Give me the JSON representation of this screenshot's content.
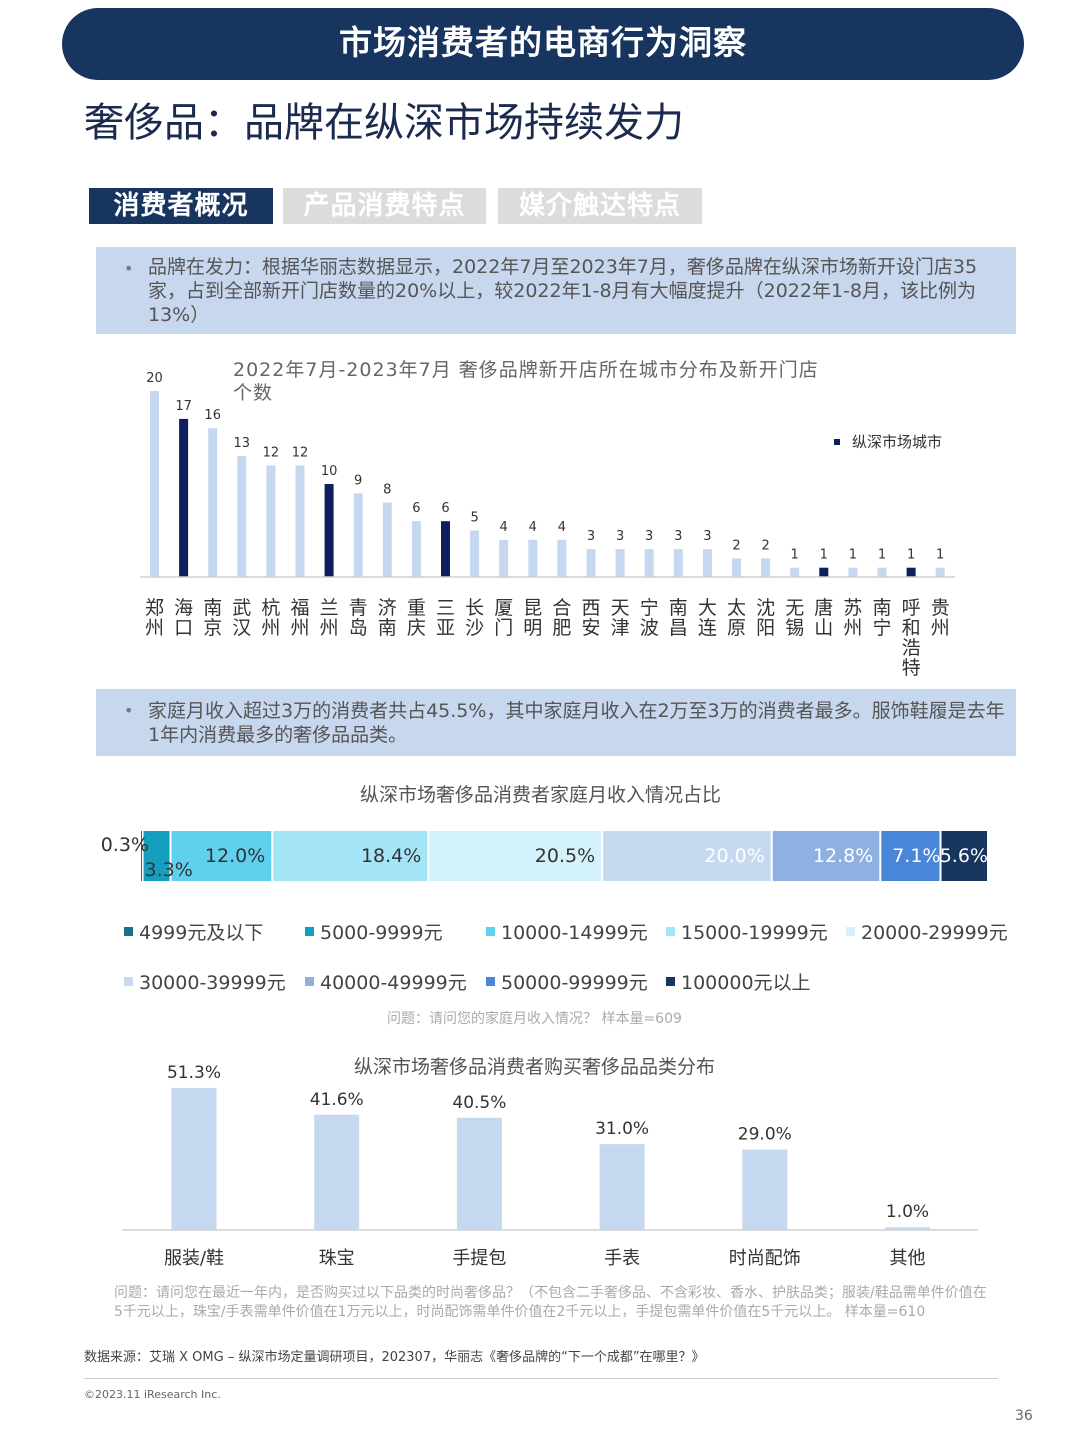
{
  "header": {
    "banner": "市场消费者的电商行为洞察",
    "title": "奢侈品：品牌在纵深市场持续发力"
  },
  "tabs": [
    {
      "label": "消费者概况",
      "active": true
    },
    {
      "label": "产品消费特点",
      "active": false
    },
    {
      "label": "媒介触达特点",
      "active": false
    }
  ],
  "notes": {
    "note1": {
      "bullet": "•",
      "text": "品牌在发力：根据华丽志数据显示，2022年7月至2023年7月，奢侈品牌在纵深市场新开设门店35家，占到全部新开门店数量的20%以上，较2022年1-8月有大幅度提升（2022年1-8月，该比例为13%）"
    },
    "note2": {
      "bullet": "•",
      "text": "家庭月收入超过3万的消费者共占45.5%，其中家庭月收入在2万至3万的消费者最多。服饰鞋履是去年1年内消费最多的奢侈品品类。"
    }
  },
  "colors": {
    "banner": "#17355f",
    "light_bar": "#c5d8f0",
    "dark_bar": "#0d1f5c"
  },
  "chart_data": [
    {
      "type": "bar",
      "title": "2022年7月-2023年7月 奢侈品牌新开店所在城市分布及新开门店个数",
      "legend": {
        "label": "纵深市场城市",
        "position": "top-right"
      },
      "categories": [
        "郑州",
        "海口",
        "南京",
        "武汉",
        "杭州",
        "福州",
        "兰州",
        "青岛",
        "济南",
        "重庆",
        "三亚",
        "长沙",
        "厦门",
        "昆明",
        "合肥",
        "西安",
        "天津",
        "宁波",
        "南昌",
        "大连",
        "太原",
        "沈阳",
        "无锡",
        "唐山",
        "苏州",
        "南宁",
        "呼和浩特",
        "贵州"
      ],
      "values": [
        20,
        17,
        16,
        13,
        12,
        12,
        10,
        9,
        8,
        6,
        6,
        5,
        4,
        4,
        4,
        3,
        3,
        3,
        3,
        3,
        2,
        2,
        1,
        1,
        1,
        1,
        1,
        1
      ],
      "highlight": [
        false,
        true,
        false,
        false,
        false,
        false,
        true,
        false,
        false,
        false,
        true,
        false,
        false,
        false,
        false,
        false,
        false,
        false,
        false,
        false,
        false,
        false,
        false,
        true,
        false,
        false,
        true,
        false
      ],
      "data_labels": [
        "20",
        "17",
        "16",
        "13",
        "12",
        "12",
        "10",
        "9",
        "8",
        "6",
        "6",
        "5",
        "4",
        "4",
        "4",
        "3",
        "3",
        "3",
        "3",
        "3",
        "2",
        "2",
        "1",
        "1",
        "1",
        "1",
        "1",
        "1"
      ]
    },
    {
      "type": "bar",
      "subtype": "stacked-100",
      "title": "纵深市场奢侈品消费者家庭月收入情况占比",
      "categories": [
        "4999元及以下",
        "5000-9999元",
        "10000-14999元",
        "15000-19999元",
        "20000-29999元",
        "30000-39999元",
        "40000-49999元",
        "50000-99999元",
        "100000元以上"
      ],
      "values": [
        0.3,
        3.3,
        12.0,
        18.4,
        20.5,
        20.0,
        12.8,
        7.1,
        5.6
      ],
      "data_labels": [
        "0.3%",
        "3.3%",
        "12.0%",
        "18.4%",
        "20.5%",
        "20.0%",
        "12.8%",
        "7.1%",
        "5.6%"
      ],
      "colors": [
        "#1a6f8a",
        "#159fbf",
        "#5fd1ef",
        "#a4e6f8",
        "#d4f2fc",
        "#c6d9ef",
        "#8fb1e2",
        "#4a86d8",
        "#17355f"
      ],
      "note": "问题：请问您的家庭月收入情况？ 样本量=609"
    },
    {
      "type": "bar",
      "title": "纵深市场奢侈品消费者购买奢侈品品类分布",
      "categories": [
        "服装/鞋",
        "珠宝",
        "手提包",
        "手表",
        "时尚配饰",
        "其他"
      ],
      "values": [
        51.3,
        41.6,
        40.5,
        31.0,
        29.0,
        1.0
      ],
      "data_labels": [
        "51.3%",
        "41.6%",
        "40.5%",
        "31.0%",
        "29.0%",
        "1.0%"
      ],
      "note": "问题：请问您在最近一年内，是否购买过以下品类的时尚奢侈品？（不包含二手奢侈品、不含彩妆、香水、护肤品类；服装/鞋品需单件价值在5千元以上，珠宝/手表需单件价值在1万元以上，时尚配饰需单件价值在2千元以上，手提包需单件价值在5千元以上。 样本量=610"
    }
  ],
  "footer": {
    "source": "数据来源：艾瑞 X OMG – 纵深市场定量调研项目，202307，华丽志《奢侈品牌的“下一个成都”在哪里？》",
    "copyright": "©2023.11 iResearch Inc.",
    "page_number": "36"
  }
}
